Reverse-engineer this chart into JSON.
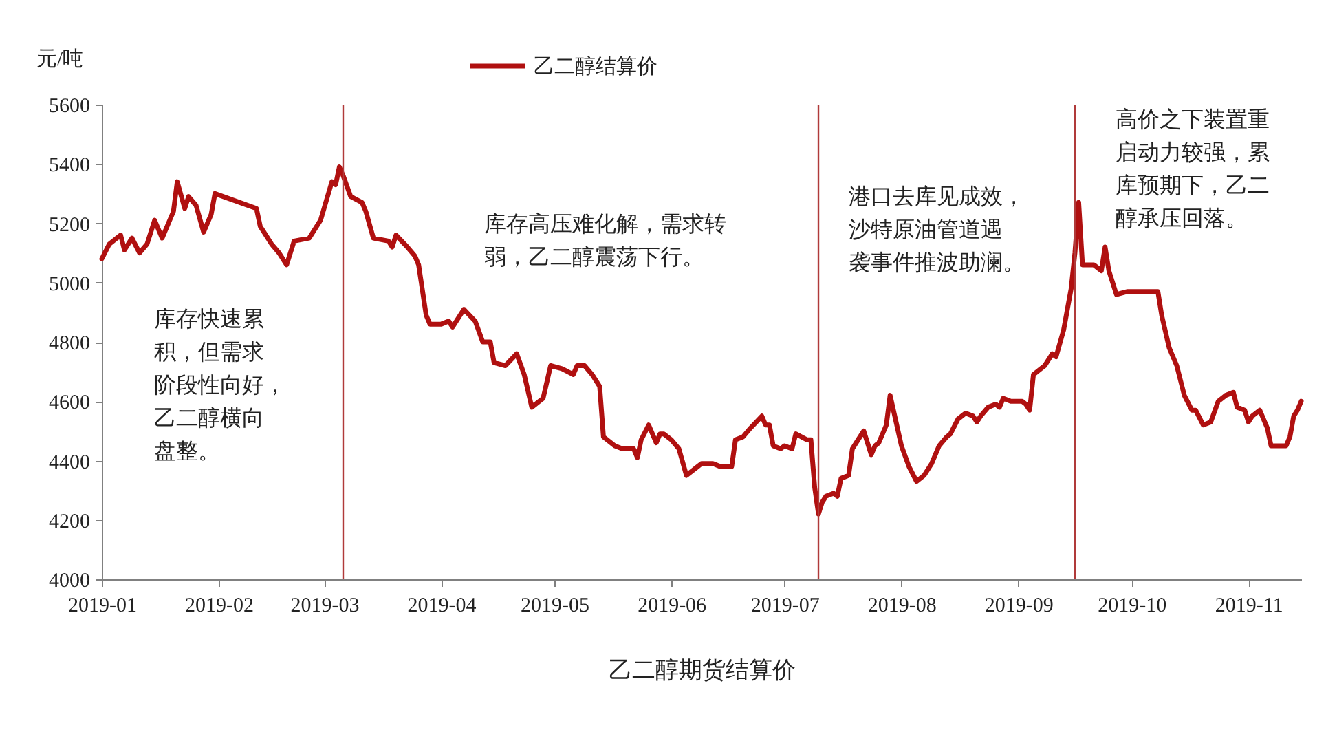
{
  "chart_data": {
    "type": "line",
    "ylabel": "元/吨",
    "xlabel": "乙二醇期货结算价",
    "legend": "top",
    "line_style": "solid",
    "marker": "none",
    "x": [
      "2019-01-01",
      "2019-01-03",
      "2019-01-05",
      "2019-01-06",
      "2019-01-07",
      "2019-01-09",
      "2019-01-11",
      "2019-01-13",
      "2019-01-15",
      "2019-01-17",
      "2019-01-20",
      "2019-01-21",
      "2019-01-23",
      "2019-01-24",
      "2019-01-26",
      "2019-01-28",
      "2019-01-30",
      "2019-01-31",
      "2019-02-11",
      "2019-02-12",
      "2019-02-15",
      "2019-02-17",
      "2019-02-19",
      "2019-02-21",
      "2019-02-25",
      "2019-02-28",
      "2019-03-03",
      "2019-03-04",
      "2019-03-05",
      "2019-03-06",
      "2019-03-08",
      "2019-03-11",
      "2019-03-12",
      "2019-03-14",
      "2019-03-18",
      "2019-03-19",
      "2019-03-20",
      "2019-03-23",
      "2019-03-25",
      "2019-03-26",
      "2019-03-28",
      "2019-03-29",
      "2019-04-01",
      "2019-04-03",
      "2019-04-04",
      "2019-04-07",
      "2019-04-10",
      "2019-04-12",
      "2019-04-14",
      "2019-04-15",
      "2019-04-18",
      "2019-04-21",
      "2019-04-23",
      "2019-04-25",
      "2019-04-27",
      "2019-04-28",
      "2019-04-30",
      "2019-05-03",
      "2019-05-06",
      "2019-05-07",
      "2019-05-09",
      "2019-05-11",
      "2019-05-13",
      "2019-05-14",
      "2019-05-17",
      "2019-05-19",
      "2019-05-22",
      "2019-05-23",
      "2019-05-24",
      "2019-05-26",
      "2019-05-28",
      "2019-05-29",
      "2019-05-30",
      "2019-06-01",
      "2019-06-03",
      "2019-06-05",
      "2019-06-08",
      "2019-06-09",
      "2019-06-12",
      "2019-06-14",
      "2019-06-17",
      "2019-06-18",
      "2019-06-20",
      "2019-06-22",
      "2019-06-25",
      "2019-06-26",
      "2019-06-27",
      "2019-06-28",
      "2019-06-30",
      "2019-07-01",
      "2019-07-03",
      "2019-07-04",
      "2019-07-07",
      "2019-07-08",
      "2019-07-09",
      "2019-07-10",
      "2019-07-11",
      "2019-07-12",
      "2019-07-14",
      "2019-07-15",
      "2019-07-16",
      "2019-07-18",
      "2019-07-19",
      "2019-07-21",
      "2019-07-22",
      "2019-07-24",
      "2019-07-25",
      "2019-07-26",
      "2019-07-28",
      "2019-07-29",
      "2019-08-01",
      "2019-08-03",
      "2019-08-05",
      "2019-08-07",
      "2019-08-09",
      "2019-08-11",
      "2019-08-13",
      "2019-08-14",
      "2019-08-16",
      "2019-08-18",
      "2019-08-20",
      "2019-08-21",
      "2019-08-22",
      "2019-08-24",
      "2019-08-26",
      "2019-08-27",
      "2019-08-28",
      "2019-08-30",
      "2019-09-02",
      "2019-09-03",
      "2019-09-04",
      "2019-09-05",
      "2019-09-07",
      "2019-09-08",
      "2019-09-10",
      "2019-09-11",
      "2019-09-13",
      "2019-09-15",
      "2019-09-16",
      "2019-09-17",
      "2019-09-18",
      "2019-09-21",
      "2019-09-23",
      "2019-09-24",
      "2019-09-25",
      "2019-09-27",
      "2019-09-30",
      "2019-10-04",
      "2019-10-08",
      "2019-10-09",
      "2019-10-11",
      "2019-10-13",
      "2019-10-15",
      "2019-10-17",
      "2019-10-18",
      "2019-10-20",
      "2019-10-22",
      "2019-10-24",
      "2019-10-26",
      "2019-10-28",
      "2019-10-29",
      "2019-10-31",
      "2019-11-01",
      "2019-11-02",
      "2019-11-04",
      "2019-11-06",
      "2019-11-07",
      "2019-11-09",
      "2019-11-11",
      "2019-11-12",
      "2019-11-13",
      "2019-11-14",
      "2019-11-15"
    ],
    "series": [
      {
        "name": "乙二醇结算价",
        "color": "#b01010",
        "values": [
          5080,
          5130,
          5150,
          5160,
          5110,
          5150,
          5100,
          5130,
          5210,
          5150,
          5240,
          5340,
          5250,
          5290,
          5260,
          5170,
          5230,
          5300,
          5250,
          5190,
          5130,
          5100,
          5060,
          5140,
          5150,
          5210,
          5340,
          5330,
          5390,
          5360,
          5290,
          5270,
          5240,
          5150,
          5140,
          5120,
          5160,
          5120,
          5090,
          5060,
          4890,
          4860,
          4860,
          4870,
          4850,
          4910,
          4870,
          4800,
          4800,
          4730,
          4720,
          4760,
          4690,
          4580,
          4600,
          4610,
          4720,
          4710,
          4690,
          4720,
          4720,
          4690,
          4650,
          4480,
          4450,
          4440,
          4440,
          4410,
          4470,
          4520,
          4460,
          4490,
          4490,
          4470,
          4440,
          4350,
          4380,
          4390,
          4390,
          4380,
          4380,
          4470,
          4480,
          4510,
          4550,
          4520,
          4520,
          4450,
          4440,
          4450,
          4440,
          4490,
          4470,
          4470,
          4310,
          4220,
          4260,
          4280,
          4290,
          4280,
          4340,
          4350,
          4440,
          4480,
          4500,
          4420,
          4450,
          4460,
          4520,
          4620,
          4450,
          4380,
          4330,
          4350,
          4390,
          4450,
          4480,
          4490,
          4540,
          4560,
          4550,
          4530,
          4550,
          4580,
          4590,
          4580,
          4610,
          4600,
          4600,
          4590,
          4570,
          4690,
          4710,
          4720,
          4760,
          4750,
          4840,
          4980,
          5100,
          5270,
          5060,
          5060,
          5040,
          5120,
          5040,
          4960,
          4970,
          4970,
          4970,
          4890,
          4780,
          4720,
          4620,
          4570,
          4570,
          4520,
          4530,
          4600,
          4620,
          4630,
          4580,
          4570,
          4530,
          4550,
          4570,
          4510,
          4450,
          4450,
          4450,
          4480,
          4550,
          4570,
          4600
        ]
      }
    ],
    "xlim": [
      "2019-01-01",
      "2019-11-15"
    ],
    "xticks": [
      "2019-01",
      "2019-02",
      "2019-03",
      "2019-04",
      "2019-05",
      "2019-06",
      "2019-07",
      "2019-08",
      "2019-09",
      "2019-10",
      "2019-11"
    ],
    "ylim": [
      4000,
      5600
    ],
    "yticks": [
      4000,
      4200,
      4400,
      4600,
      4800,
      5000,
      5200,
      5400,
      5600
    ],
    "ref_lines": [
      {
        "axis": "x",
        "value": "2019-03-06",
        "color": "#b03a3a"
      },
      {
        "axis": "x",
        "value": "2019-07-10",
        "color": "#b03a3a"
      },
      {
        "axis": "x",
        "value": "2019-09-16",
        "color": "#b03a3a"
      }
    ],
    "annotations": [
      "库存快速累积，但需求阶段性向好，乙二醇横向盘整。",
      "库存高压难化解，需求转弱，乙二醇震荡下行。",
      "港口去库见成效，沙特原油管道遇袭事件推波助澜。",
      "高价之下装置重启动力较强，累库预期下，乙二醇承压回落。"
    ]
  }
}
